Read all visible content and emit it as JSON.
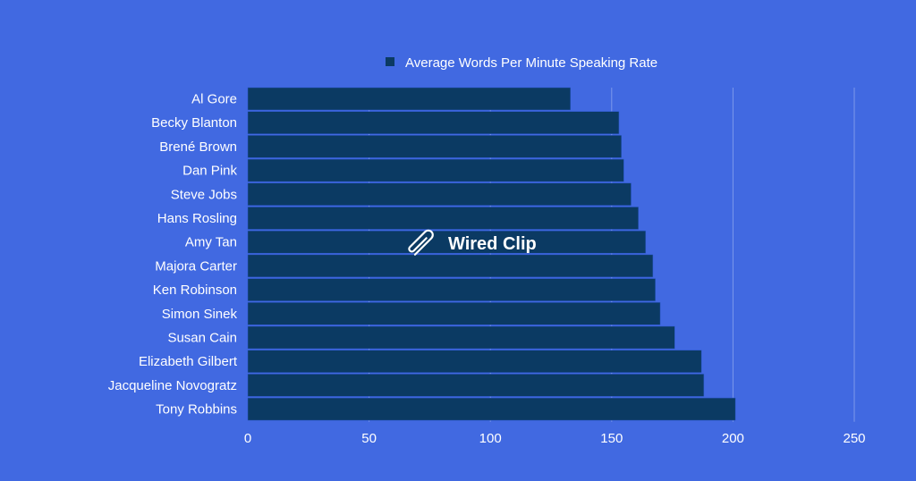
{
  "chart_data": {
    "type": "bar",
    "orientation": "horizontal",
    "categories": [
      "Al Gore",
      "Becky Blanton",
      "Brené Brown",
      "Dan Pink",
      "Steve Jobs",
      "Hans Rosling",
      "Amy Tan",
      "Majora Carter",
      "Ken Robinson",
      "Simon Sinek",
      "Susan Cain",
      "Elizabeth Gilbert",
      "Jacqueline Novogratz",
      "Tony Robbins"
    ],
    "series": [
      {
        "name": "Average Words Per Minute Speaking Rate",
        "values": [
          133,
          153,
          154,
          155,
          158,
          161,
          164,
          167,
          168,
          170,
          176,
          187,
          188,
          201
        ]
      }
    ],
    "xlim": [
      0,
      250
    ],
    "xticks": [
      0,
      50,
      100,
      150,
      200,
      250
    ],
    "grid": true,
    "legend": "top-center",
    "colors": {
      "background": "#4169e1",
      "bar": "#0b3a63",
      "bar_edge": "#2c59c9",
      "grid": "#7d99ea",
      "text": "#ffffff",
      "legend_swatch": "#0b3a63"
    }
  },
  "watermark": {
    "text": "Wired Clip",
    "icon": "paperclip-icon"
  }
}
